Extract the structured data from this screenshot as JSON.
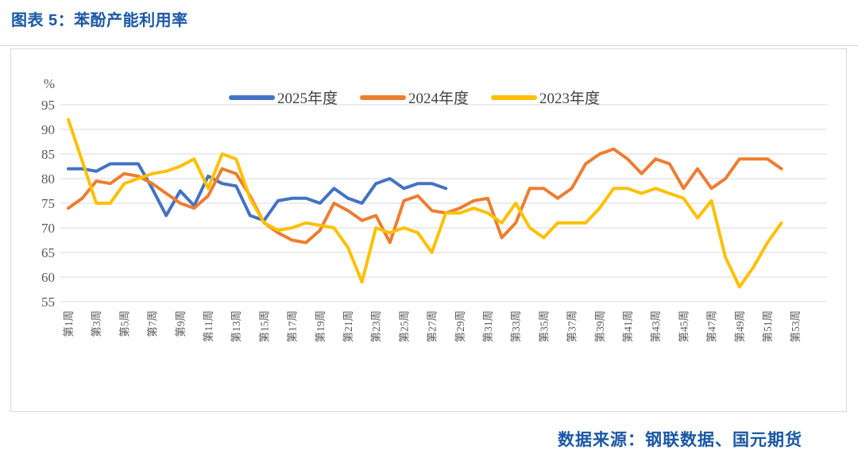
{
  "page": {
    "title": "图表 5：苯酚产能利用率",
    "source": "数据来源：钢联数据、国元期货"
  },
  "chart_data": {
    "type": "line",
    "unit_label": "%",
    "week_count": 53,
    "visible_tick_labels": [
      "第1周",
      "第3周",
      "第5周",
      "第7周",
      "第9周",
      "第11周",
      "第13周",
      "第15周",
      "第17周",
      "第19周",
      "第21周",
      "第23周",
      "第25周",
      "第27周",
      "第29周",
      "第31周",
      "第33周",
      "第35周",
      "第37周",
      "第39周",
      "第41周",
      "第43周",
      "第45周",
      "第47周",
      "第49周",
      "第51周",
      "第53周"
    ],
    "ylim": [
      55,
      95
    ],
    "yticks": [
      95,
      90,
      85,
      80,
      75,
      70,
      65,
      60,
      55
    ],
    "grid": true,
    "legend_position": "top",
    "axis_text_color": "#595959",
    "grid_color": "#d9d9d9",
    "series": [
      {
        "name": "2025年度",
        "color": "#4472C4",
        "values": [
          82,
          82,
          81.5,
          83,
          83,
          83,
          78,
          72.5,
          77.5,
          74.5,
          80.5,
          79,
          78.5,
          72.5,
          71.5,
          75.5,
          76,
          76,
          75,
          78,
          76,
          75,
          79,
          80,
          78,
          79,
          79,
          78,
          null,
          null,
          null,
          null,
          null,
          null,
          null,
          null,
          null,
          null,
          null,
          null,
          null,
          null,
          null,
          null,
          null,
          null,
          null,
          null,
          null,
          null,
          null,
          null,
          null
        ]
      },
      {
        "name": "2024年度",
        "color": "#ED7D31",
        "values": [
          74,
          76,
          79.5,
          79,
          81,
          80.5,
          79,
          77,
          75,
          74,
          76.5,
          82,
          81,
          76.5,
          71,
          69,
          67.5,
          67,
          69.5,
          75,
          73.5,
          71.5,
          72.5,
          67,
          75.5,
          76.5,
          73.5,
          73,
          74,
          75.5,
          76,
          68,
          71,
          78,
          78,
          76,
          78,
          83,
          85,
          86,
          84,
          81,
          84,
          83,
          78,
          82,
          78,
          80,
          84,
          84,
          84,
          82,
          null
        ]
      },
      {
        "name": "2023年度",
        "color": "#FFC000",
        "values": [
          92,
          83.5,
          75,
          75,
          79,
          80,
          81,
          81.5,
          82.5,
          84,
          78,
          85,
          84,
          76,
          71,
          69.5,
          70,
          71,
          70.5,
          70,
          66,
          59,
          70,
          69,
          70,
          69,
          65,
          73,
          73,
          74,
          73,
          71,
          75,
          70,
          68,
          71,
          71,
          71,
          74,
          78,
          78,
          77,
          78,
          77,
          76,
          72,
          75.5,
          64,
          58,
          62,
          67,
          71,
          null
        ]
      }
    ]
  }
}
